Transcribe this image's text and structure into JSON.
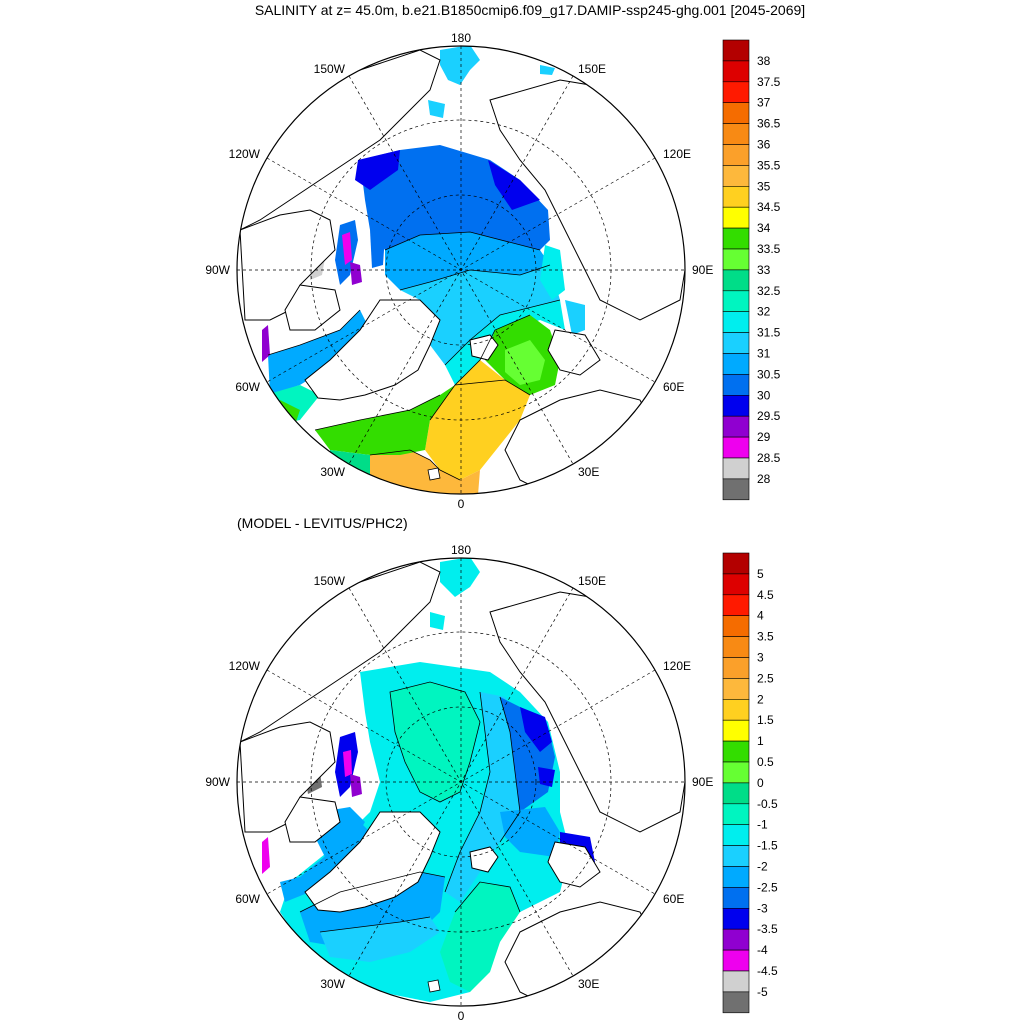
{
  "title": "SALINITY at z=  45.0m, b.e21.B1850cmip6.f09_g17.DAMIP-ssp245-ghg.001 [2045-2069]",
  "subtitle": "(MODEL - LEVITUS/PHC2)",
  "longitude_labels": {
    "top": "180",
    "bottom": "0",
    "w150": "150W",
    "e150": "150E",
    "w120": "120W",
    "e120": "120E",
    "w90": "90W",
    "e90": "90E",
    "w60": "60W",
    "e60": "60E",
    "w30": "30W",
    "e30": "30E"
  },
  "colorbar_top": {
    "labels": [
      "38",
      "37.5",
      "37",
      "36.5",
      "36",
      "35.5",
      "35",
      "34.5",
      "34",
      "33.5",
      "33",
      "32.5",
      "32",
      "31.5",
      "31",
      "30.5",
      "30",
      "29.5",
      "29",
      "28.5",
      "28"
    ],
    "colors": [
      "#b30000",
      "#dd0000",
      "#ff1a00",
      "#f56c00",
      "#f88a14",
      "#fba02a",
      "#fdb83c",
      "#ffd020",
      "#ffff00",
      "#33dd00",
      "#66ff33",
      "#00dd88",
      "#00f5c0",
      "#00eeee",
      "#1ad0ff",
      "#00aaff",
      "#0070f0",
      "#0000ee",
      "#9000d0",
      "#ee00ee",
      "#d0d0d0",
      "#707070"
    ]
  },
  "colorbar_bottom": {
    "labels": [
      "5",
      "4.5",
      "4",
      "3.5",
      "3",
      "2.5",
      "2",
      "1.5",
      "1",
      "0.5",
      "0",
      "-0.5",
      "-1",
      "-1.5",
      "-2",
      "-2.5",
      "-3",
      "-3.5",
      "-4",
      "-4.5",
      "-5"
    ],
    "colors": [
      "#b30000",
      "#dd0000",
      "#ff1a00",
      "#f56c00",
      "#f88a14",
      "#fba02a",
      "#fdb83c",
      "#ffd020",
      "#ffff00",
      "#33dd00",
      "#66ff33",
      "#00dd88",
      "#00f5c0",
      "#00eeee",
      "#1ad0ff",
      "#00aaff",
      "#0070f0",
      "#0000ee",
      "#9000d0",
      "#ee00ee",
      "#d0d0d0",
      "#707070"
    ]
  }
}
